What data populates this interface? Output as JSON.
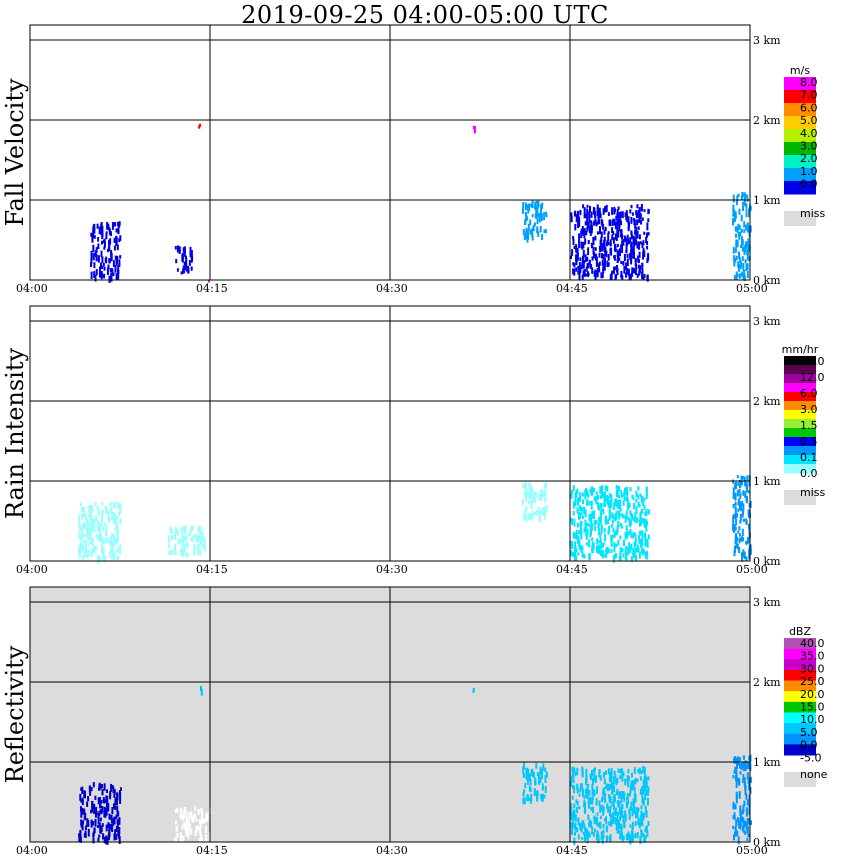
{
  "title": "2019-09-25   04:00-05:00 UTC",
  "chart_data": [
    {
      "type": "heatmap",
      "ylabel": "Fall Velocity",
      "time_ticks": [
        "04:00",
        "04:15",
        "04:30",
        "04:45",
        "05:00"
      ],
      "height_ticks": [
        "0 km",
        "1 km",
        "2 km",
        "3 km"
      ],
      "xlim": [
        "04:00",
        "05:00"
      ],
      "ylim_km": [
        0,
        3.2
      ],
      "grid": true,
      "background": "#ffffff",
      "colorbar": {
        "unit": "m/s",
        "labels": [
          "8.0",
          "7.0",
          "6.0",
          "5.0",
          "4.0",
          "3.0",
          "2.0",
          "1.0",
          "0.0"
        ],
        "colors": [
          "#ff00ff",
          "#ff0000",
          "#ff8c00",
          "#ffcc00",
          "#b4f000",
          "#00b400",
          "#00f0c8",
          "#00a0ff",
          "#0000e6"
        ],
        "missing_label": "miss",
        "missing_color": "#dcdcdc"
      },
      "echoes": [
        {
          "t_min": [
            5,
            7.5
          ],
          "h_km": [
            0.05,
            0.75
          ],
          "color": "#0000e6"
        },
        {
          "t_min": [
            12,
            13.5
          ],
          "h_km": [
            0.1,
            0.45
          ],
          "color": "#0000e6"
        },
        {
          "t_min": [
            14,
            14.3
          ],
          "h_km": [
            1.9,
            1.98
          ],
          "color": "#ff0000"
        },
        {
          "t_min": [
            14.8,
            15
          ],
          "h_km": [
            0,
            0.05
          ],
          "color": "#ff00ff"
        },
        {
          "t_min": [
            36.7,
            37
          ],
          "h_km": [
            1.88,
            1.96
          ],
          "color": "#ff00ff"
        },
        {
          "t_min": [
            41,
            43
          ],
          "h_km": [
            0.55,
            1.0
          ],
          "color": "#00a0ff"
        },
        {
          "t_min": [
            45,
            51.5
          ],
          "h_km": [
            0.05,
            0.95
          ],
          "color": "#0000e6"
        },
        {
          "t_min": [
            58.5,
            60
          ],
          "h_km": [
            0.05,
            1.1
          ],
          "color": "#00a0ff"
        }
      ]
    },
    {
      "type": "heatmap",
      "ylabel": "Rain Intensity",
      "time_ticks": [
        "04:00",
        "04:15",
        "04:30",
        "04:45",
        "05:00"
      ],
      "height_ticks": [
        "0 km",
        "1 km",
        "2 km",
        "3 km"
      ],
      "xlim": [
        "04:00",
        "05:00"
      ],
      "ylim_km": [
        0,
        3.2
      ],
      "grid": true,
      "background": "#ffffff",
      "colorbar": {
        "unit": "mm/hr",
        "labels": [
          "48.0",
          "12.0",
          "6.0",
          "3.0",
          "1.5",
          "0.5",
          "0.1",
          "0.0"
        ],
        "colors": [
          "#000000",
          "#5a0050",
          "#a000a0",
          "#ff00ff",
          "#ff0000",
          "#ff8c00",
          "#ffff00",
          "#96f032",
          "#00c800",
          "#0000ff",
          "#0096ff",
          "#00e6ff",
          "#96ffff"
        ],
        "missing_label": "miss",
        "missing_color": "#dcdcdc"
      },
      "echoes": [
        {
          "t_min": [
            4,
            7.5
          ],
          "h_km": [
            0.05,
            0.75
          ],
          "color": "#96ffff"
        },
        {
          "t_min": [
            11.5,
            14.5
          ],
          "h_km": [
            0.1,
            0.45
          ],
          "color": "#96ffff"
        },
        {
          "t_min": [
            41,
            43
          ],
          "h_km": [
            0.55,
            1.0
          ],
          "color": "#96ffff"
        },
        {
          "t_min": [
            45,
            51.5
          ],
          "h_km": [
            0.05,
            0.95
          ],
          "color": "#00e6ff"
        },
        {
          "t_min": [
            58.5,
            60
          ],
          "h_km": [
            0.05,
            1.1
          ],
          "color": "#0096ff"
        }
      ]
    },
    {
      "type": "heatmap",
      "ylabel": "Reflectivity",
      "time_ticks": [
        "04:00",
        "04:15",
        "04:30",
        "04:45",
        "05:00"
      ],
      "height_ticks": [
        "0 km",
        "1 km",
        "2 km",
        "3 km"
      ],
      "xlim": [
        "04:00",
        "05:00"
      ],
      "ylim_km": [
        0,
        3.2
      ],
      "grid": true,
      "background": "#dcdcdc",
      "colorbar": {
        "unit": "dBZ",
        "labels": [
          "40.0",
          "35.0",
          "30.0",
          "25.0",
          "20.0",
          "15.0",
          "10.0",
          "5.0",
          "0.0",
          "-5.0"
        ],
        "colors": [
          "#b450b4",
          "#ff00ff",
          "#c800c8",
          "#ff0000",
          "#ff8c00",
          "#ffff00",
          "#00c800",
          "#00ffff",
          "#00c8ff",
          "#0096ff",
          "#0000c8"
        ],
        "missing_label": "none",
        "missing_color": "#dcdcdc"
      },
      "echoes": [
        {
          "t_min": [
            4,
            7.5
          ],
          "h_km": [
            0.05,
            0.75
          ],
          "color": "#0000c8"
        },
        {
          "t_min": [
            12,
            15
          ],
          "h_km": [
            0.05,
            0.45
          ],
          "color": "#ffffff"
        },
        {
          "t_min": [
            14,
            14.3
          ],
          "h_km": [
            1.9,
            1.98
          ],
          "color": "#00c8ff"
        },
        {
          "t_min": [
            36.7,
            37
          ],
          "h_km": [
            1.88,
            1.96
          ],
          "color": "#00c8ff"
        },
        {
          "t_min": [
            41,
            43
          ],
          "h_km": [
            0.55,
            1.0
          ],
          "color": "#00c8ff"
        },
        {
          "t_min": [
            45,
            51.5
          ],
          "h_km": [
            0.05,
            0.95
          ],
          "color": "#00c8ff"
        },
        {
          "t_min": [
            58.5,
            60
          ],
          "h_km": [
            0.05,
            1.1
          ],
          "color": "#0096ff"
        }
      ]
    }
  ]
}
